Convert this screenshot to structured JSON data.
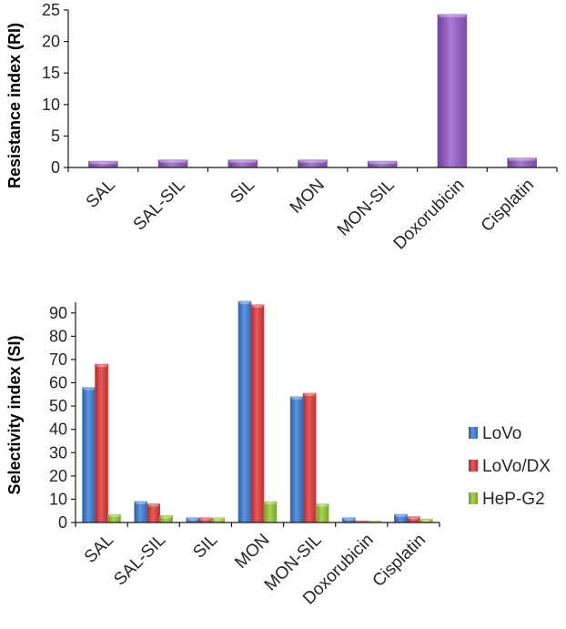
{
  "chart_data": [
    {
      "type": "bar",
      "categories": [
        "SAL",
        "SAL-SIL",
        "SIL",
        "MON",
        "MON-SIL",
        "Doxorubicin",
        "Cisplatin"
      ],
      "series": [
        {
          "values": [
            1.0,
            1.2,
            1.2,
            1.2,
            1.0,
            24.3,
            1.5
          ]
        }
      ],
      "ylabel": "Resistance index (RI)",
      "xlabel": "",
      "ylim": [
        0,
        25
      ],
      "yticks": [
        0,
        5,
        10,
        15,
        20,
        25
      ],
      "colors": [
        "#8e5bbd"
      ],
      "grid": false
    },
    {
      "type": "bar",
      "categories": [
        "SAL",
        "SAL-SIL",
        "SIL",
        "MON",
        "MON-SIL",
        "Doxorubicin",
        "Cisplatin"
      ],
      "series": [
        {
          "name": "LoVo",
          "values": [
            58,
            9,
            2,
            95,
            54,
            2,
            3.5
          ]
        },
        {
          "name": "LoVo/DX",
          "values": [
            68,
            8,
            2,
            93.5,
            55.5,
            0.7,
            2.5
          ]
        },
        {
          "name": "HeP-G2",
          "values": [
            3.5,
            3,
            2,
            9,
            8,
            0.7,
            1.5
          ]
        }
      ],
      "ylabel": "Selectivity index (SI)",
      "xlabel": "",
      "ylim": [
        0,
        95
      ],
      "yticks": [
        0,
        10,
        20,
        30,
        40,
        50,
        60,
        70,
        80,
        90
      ],
      "colors": [
        "#3a78c9",
        "#d23a3a",
        "#8dbf3a"
      ],
      "legend_position": "right",
      "grid": false
    }
  ]
}
